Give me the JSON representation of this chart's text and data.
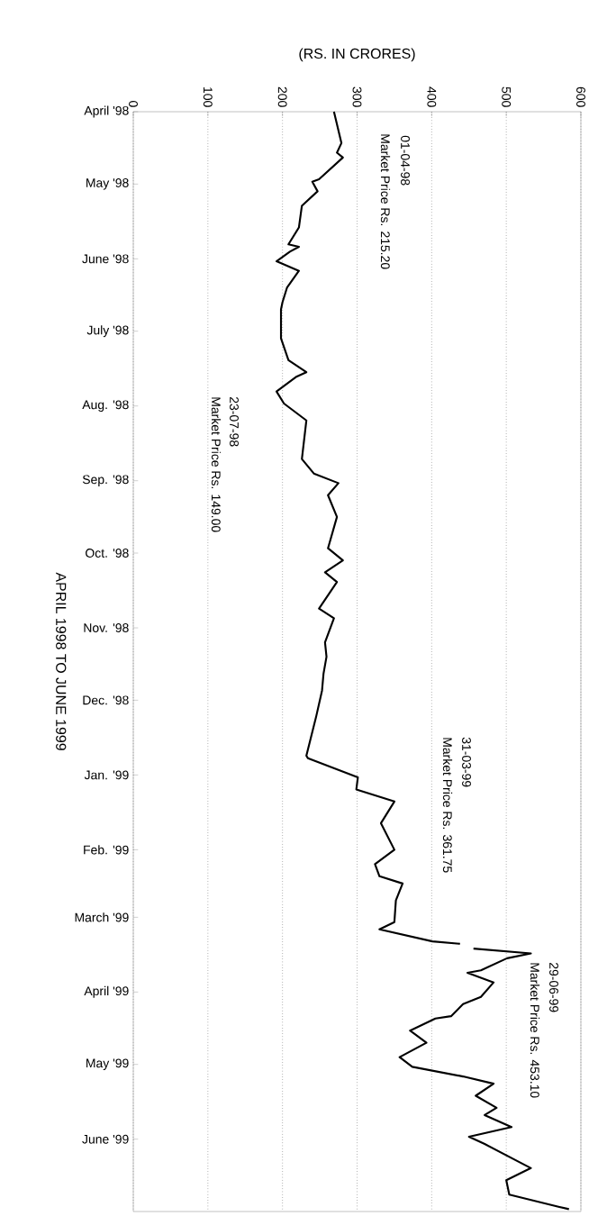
{
  "chart_data": {
    "type": "line",
    "orientation": "horizontal",
    "xlabel": "(RS. IN CRORES)",
    "ylabel": "APRIL 1998 TO JUNE 1999",
    "color": "#000000",
    "grid": "x",
    "ylim": [
      "1999-07-01",
      "1998-04-01"
    ],
    "yticks": [
      {
        "value": "1998-04-01",
        "label": "April '98"
      },
      {
        "value": "1998-05-01",
        "label": "May '98"
      },
      {
        "value": "1998-06-01",
        "label": "June '98"
      },
      {
        "value": "1998-07-01",
        "label": "July '98"
      },
      {
        "value": "1998-08-01",
        "label": "Aug. '98"
      },
      {
        "value": "1998-09-01",
        "label": "Sep. '98"
      },
      {
        "value": "1998-10-01",
        "label": "Oct. '98"
      },
      {
        "value": "1998-11-01",
        "label": "Nov. '98"
      },
      {
        "value": "1998-12-01",
        "label": "Dec. '98"
      },
      {
        "value": "1999-01-01",
        "label": "Jan. '99"
      },
      {
        "value": "1999-02-01",
        "label": "Feb. '99"
      },
      {
        "value": "1999-03-01",
        "label": "March '99"
      },
      {
        "value": "1999-04-01",
        "label": "April '99"
      },
      {
        "value": "1999-05-01",
        "label": "May '99"
      },
      {
        "value": "1999-06-01",
        "label": "June '99"
      }
    ],
    "xlim": [
      0,
      600
    ],
    "xticks": [
      0,
      100,
      200,
      300,
      400,
      500,
      600
    ],
    "x": [
      "1998-04-01",
      "1998-04-14",
      "1998-04-18",
      "1998-04-20",
      "1998-04-29",
      "1998-04-30",
      "1998-05-04",
      "1998-05-10",
      "1998-05-19",
      "1998-05-26",
      "1998-05-27",
      "1998-05-29",
      "1998-06-02",
      "1998-06-06",
      "1998-06-13",
      "1998-06-19",
      "1998-06-22",
      "1998-07-04",
      "1998-07-13",
      "1998-07-18",
      "1998-07-20",
      "1998-07-26",
      "1998-07-31",
      "1998-08-07",
      "1998-08-23",
      "1998-08-29",
      "1998-09-02",
      "1998-09-07",
      "1998-09-16",
      "1998-09-29",
      "1998-10-04",
      "1998-10-09",
      "1998-10-13",
      "1998-10-24",
      "1998-10-28",
      "1998-11-07",
      "1998-11-13",
      "1998-11-20",
      "1998-11-27",
      "1998-12-08",
      "1998-12-24",
      "1998-12-25",
      "1999-01-02",
      "1999-01-07",
      "1999-01-12",
      "1999-01-21",
      "1999-02-01",
      "1999-02-07",
      "1999-02-12",
      "1999-02-15",
      "1999-02-22",
      "1999-03-03",
      "1999-03-06",
      "1999-03-11",
      "1999-03-12",
      "1999-03-13",
      "1999-03-14",
      "1999-03-16",
      "1999-03-18",
      "1999-03-23",
      "1999-03-24",
      "1999-03-28",
      "1999-04-03",
      "1999-04-06",
      "1999-04-11",
      "1999-04-12",
      "1999-04-17",
      "1999-04-22",
      "1999-04-28",
      "1999-05-02",
      "1999-05-06",
      "1999-05-09",
      "1999-05-14",
      "1999-05-19",
      "1999-05-22",
      "1999-05-27",
      "1999-05-31",
      "1999-06-03",
      "1999-06-13",
      "1999-06-18",
      "1999-06-24",
      "1999-06-29",
      "1999-06-30"
    ],
    "values": [
      269,
      279,
      273,
      281,
      249,
      240,
      247,
      226,
      222,
      208,
      222,
      210,
      192,
      222,
      206,
      200,
      198,
      198,
      208,
      232,
      218,
      192,
      202,
      232,
      226,
      242,
      275,
      261,
      273,
      261,
      281,
      257,
      273,
      249,
      269,
      257,
      259,
      255,
      253,
      245,
      232,
      234,
      301,
      299,
      350,
      332,
      350,
      324,
      330,
      361,
      352,
      350,
      330,
      401,
      438,
      null,
      456,
      533,
      501,
      466,
      448,
      483,
      466,
      442,
      426,
      405,
      371,
      393,
      357,
      374,
      442,
      483,
      459,
      487,
      471,
      507,
      450,
      471,
      533,
      500,
      504,
      570,
      584
    ],
    "annotations": [
      "01-04-98",
      "Market Price Rs. 215.20",
      "23-07-98",
      "Market Price Rs. 149.00",
      "31-03-99",
      "Market Price Rs. 361.75",
      "29-06-99",
      "Market Price Rs. 453.10"
    ]
  }
}
